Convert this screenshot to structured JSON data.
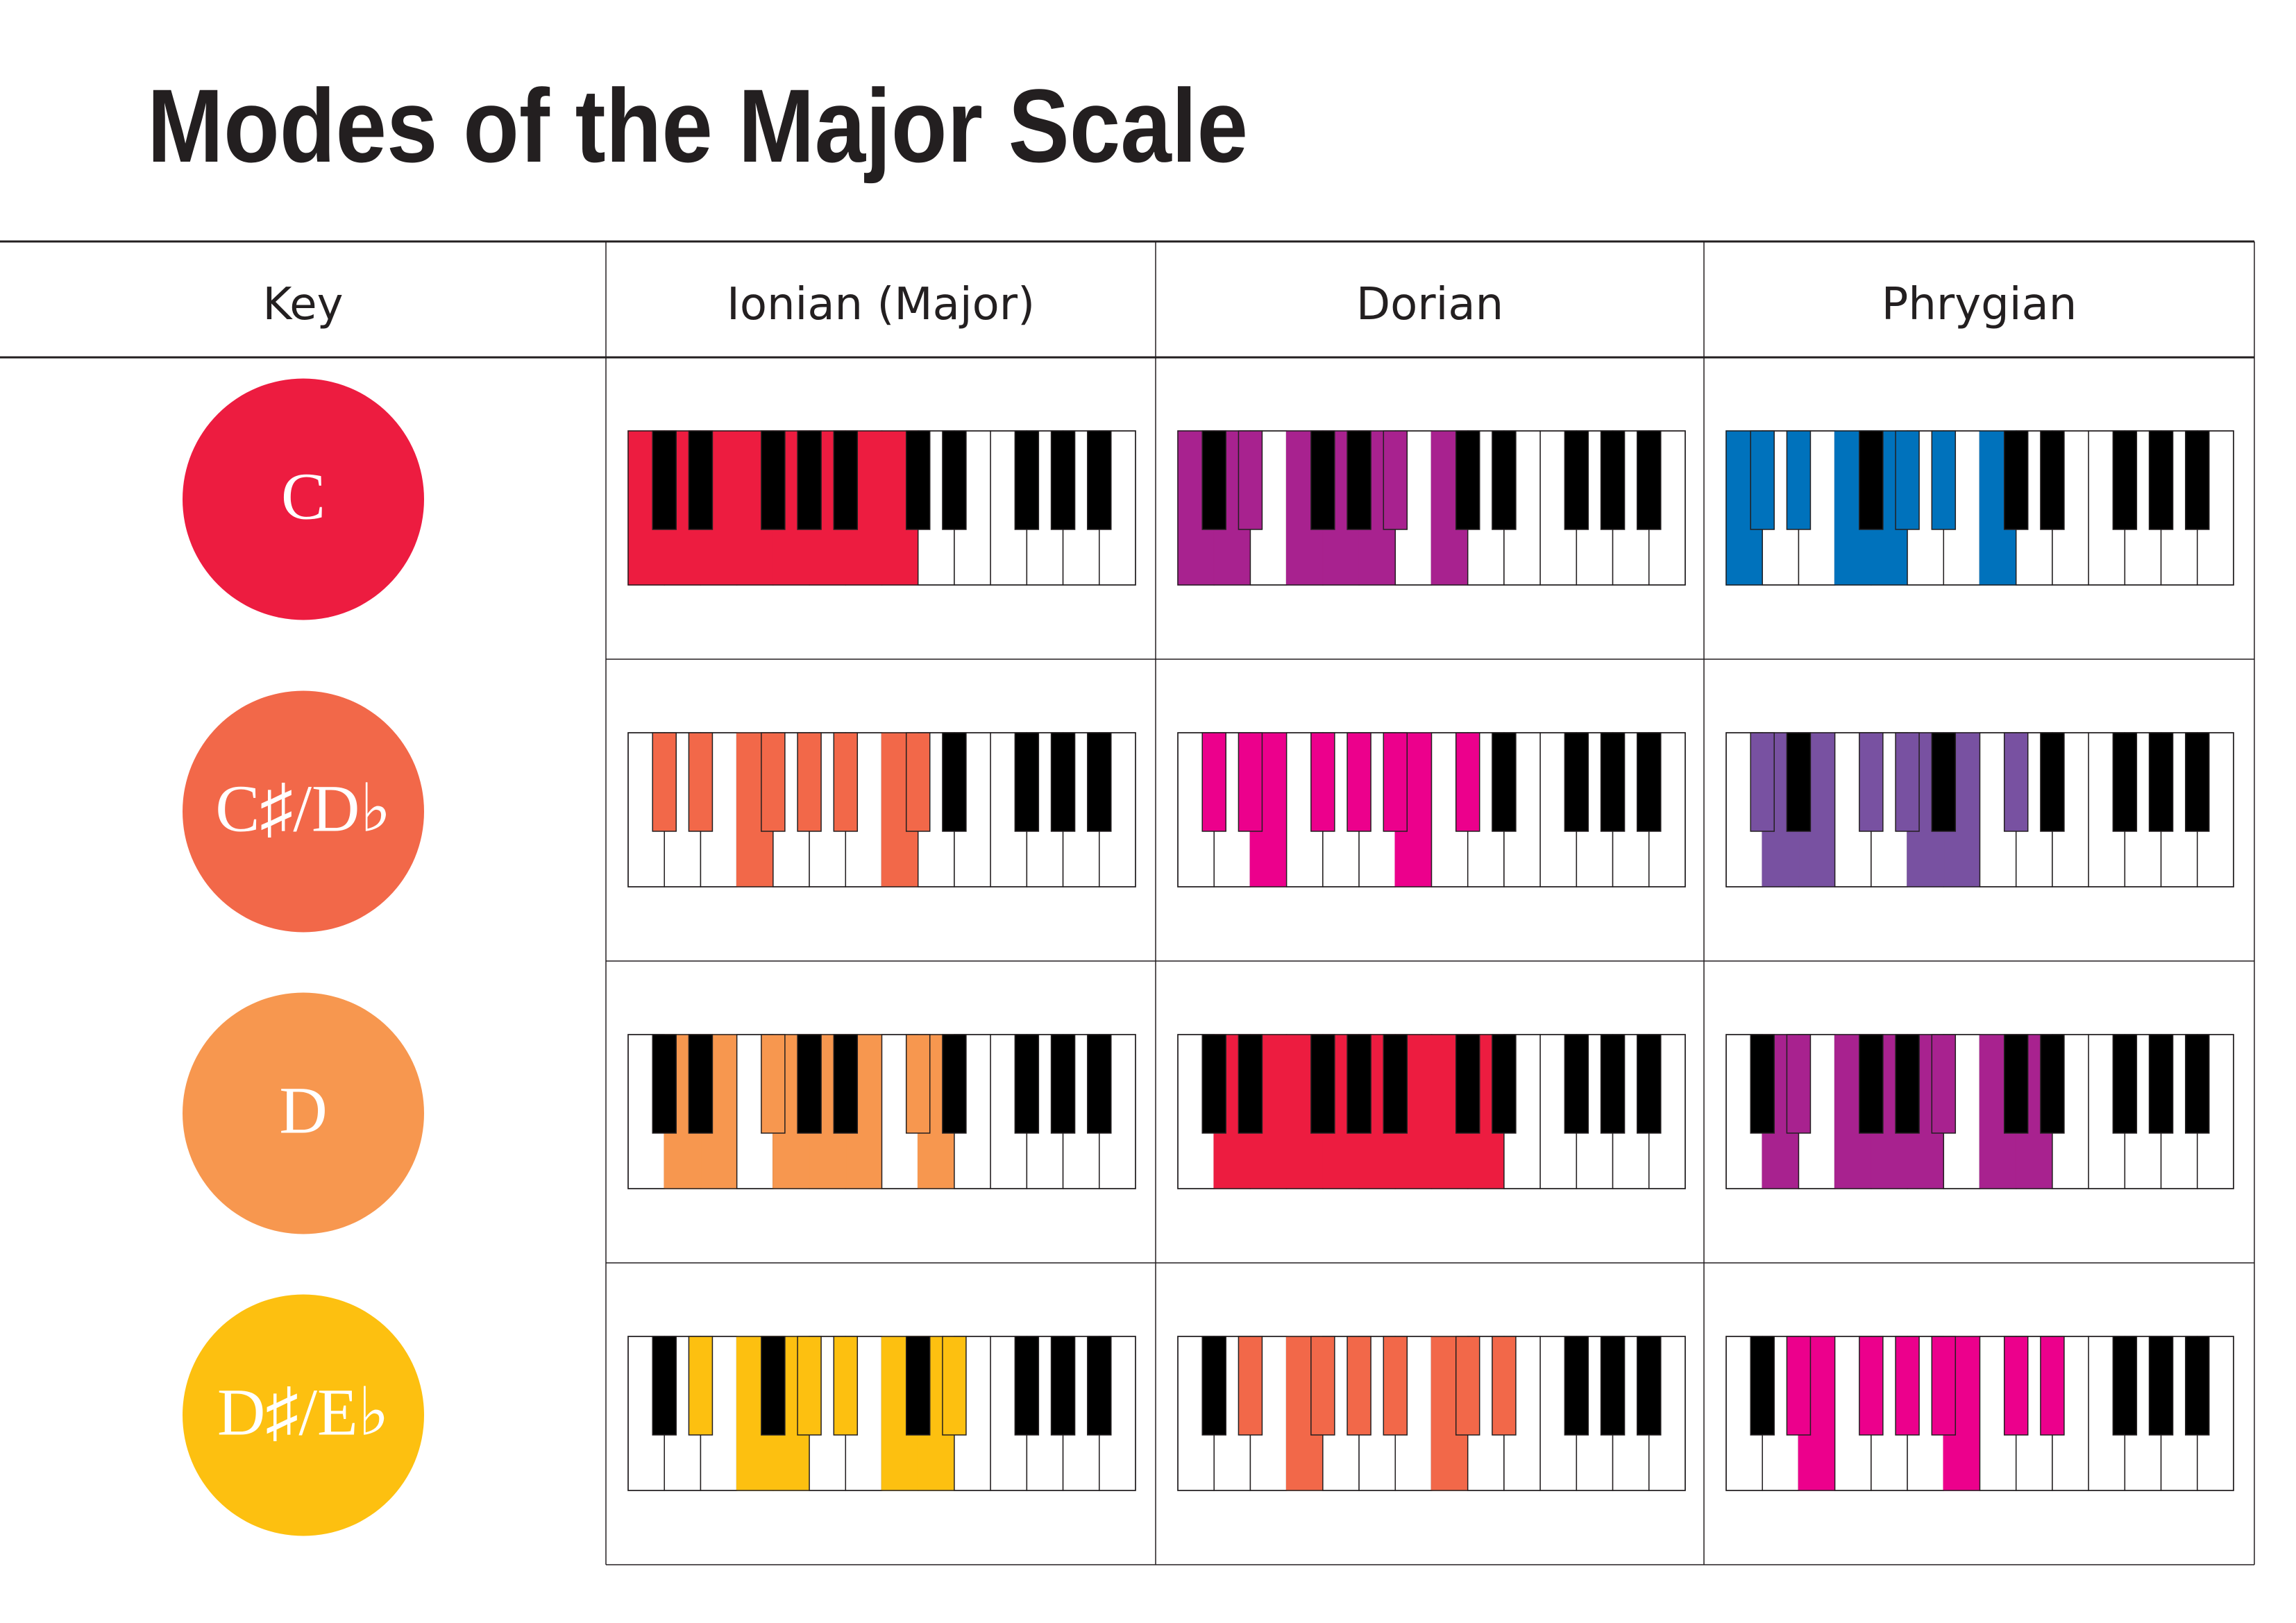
{
  "title": "Modes of the Major Scale",
  "header": [
    "Key",
    "Ionian (Major)",
    "Dorian",
    "Phrygian"
  ],
  "rows": [
    {
      "key": "C",
      "color": "#ed1c40",
      "cells": [
        {
          "color": "#ed1c40"
        },
        {
          "color": "#a8228f"
        },
        {
          "color": "#0072bc"
        }
      ]
    },
    {
      "key": "C♯/D♭",
      "color": "#f26849",
      "cells": [
        {
          "color": "#f26849"
        },
        {
          "color": "#ec008c"
        },
        {
          "color": "#7851a1"
        }
      ]
    },
    {
      "key": "D",
      "color": "#f7974f",
      "cells": [
        {
          "color": "#f7974f"
        },
        {
          "color": "#ed1c40"
        },
        {
          "color": "#a8228f"
        }
      ]
    },
    {
      "key": "D♯/E♭",
      "color": "#fdc010",
      "cells": [
        {
          "color": "#fdc010"
        },
        {
          "color": "#f26849"
        },
        {
          "color": "#ec008c"
        }
      ]
    }
  ]
}
